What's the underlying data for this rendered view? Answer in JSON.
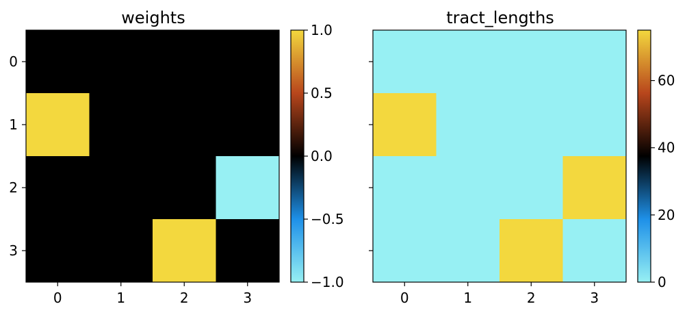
{
  "chart_data": [
    {
      "type": "heatmap",
      "title": "weights",
      "x": [
        0,
        1,
        2,
        3
      ],
      "y": [
        0,
        1,
        2,
        3
      ],
      "xticklabels": [
        "0",
        "1",
        "2",
        "3"
      ],
      "yticklabels": [
        "0",
        "1",
        "2",
        "3"
      ],
      "values": [
        [
          0,
          0,
          0,
          0
        ],
        [
          1,
          0,
          0,
          0
        ],
        [
          0,
          0,
          0,
          -1
        ],
        [
          0,
          0,
          1,
          0
        ]
      ],
      "vmin": -1.0,
      "vmax": 1.0,
      "colorbar_ticks": [
        -1.0,
        -0.5,
        0.0,
        0.5,
        1.0
      ],
      "colorbar_ticklabels": [
        "−1.0",
        "−0.5",
        "0.0",
        "0.5",
        "1.0"
      ],
      "colormap": "cyan-blue-black-red-yellow (diverging)"
    },
    {
      "type": "heatmap",
      "title": "tract_lengths",
      "x": [
        0,
        1,
        2,
        3
      ],
      "y": [
        0,
        1,
        2,
        3
      ],
      "xticklabels": [
        "0",
        "1",
        "2",
        "3"
      ],
      "yticklabels": [],
      "values": [
        [
          0,
          0,
          0,
          0
        ],
        [
          75,
          0,
          0,
          0
        ],
        [
          0,
          0,
          0,
          75
        ],
        [
          0,
          0,
          75,
          0
        ]
      ],
      "vmin": 0,
      "vmax": 75,
      "colorbar_ticks": [
        0,
        20,
        40,
        60
      ],
      "colorbar_ticklabels": [
        "0",
        "20",
        "40",
        "60"
      ],
      "colormap": "cyan-blue-black-red-yellow (diverging)"
    }
  ],
  "colormap_stops": [
    "#97f0f3",
    "#1e90e8",
    "#000000",
    "#b8461c",
    "#f3d83e"
  ]
}
